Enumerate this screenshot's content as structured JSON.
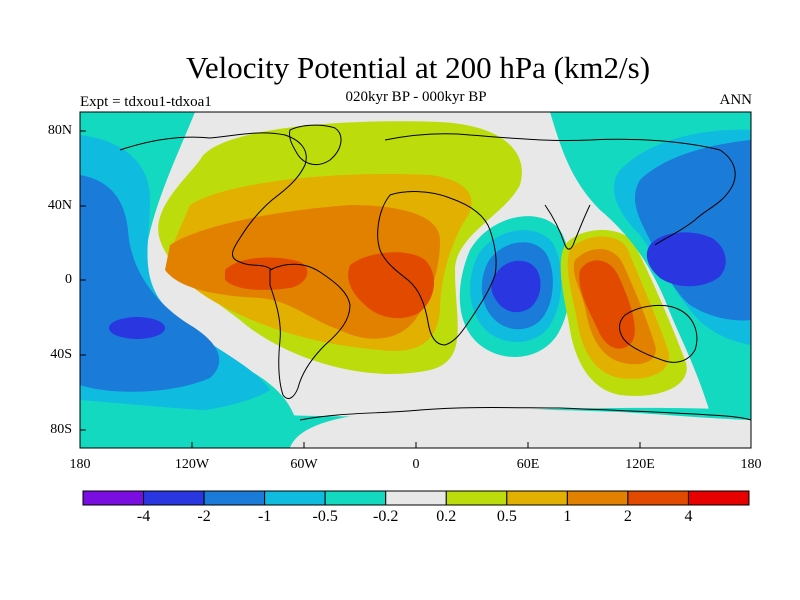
{
  "title": "Velocity Potential at 200 hPa (km2/s)",
  "subtitle": "020kyr BP - 000kyr BP",
  "left_string": "Expt = tdxou1-tdxoa1",
  "right_string": "ANN",
  "axes": {
    "lat_labels": [
      "80N",
      "40N",
      "0",
      "40S",
      "80S"
    ],
    "lon_labels": [
      "180",
      "120W",
      "60W",
      "0",
      "60E",
      "120E",
      "180"
    ]
  },
  "colorbar": {
    "colors": [
      "#7a0ee0",
      "#2a37e0",
      "#1a7bd8",
      "#10bbe0",
      "#13d9c0",
      "#e8e8e8",
      "#bddc0c",
      "#e2b000",
      "#e28000",
      "#e24a00",
      "#e60000"
    ],
    "labels": [
      "-4",
      "-2",
      "-1",
      "-0.5",
      "-0.2",
      "0.2",
      "0.5",
      "1",
      "2",
      "4"
    ]
  },
  "palette": {
    "water": "#e8e8e8",
    "coast": "#000000"
  }
}
